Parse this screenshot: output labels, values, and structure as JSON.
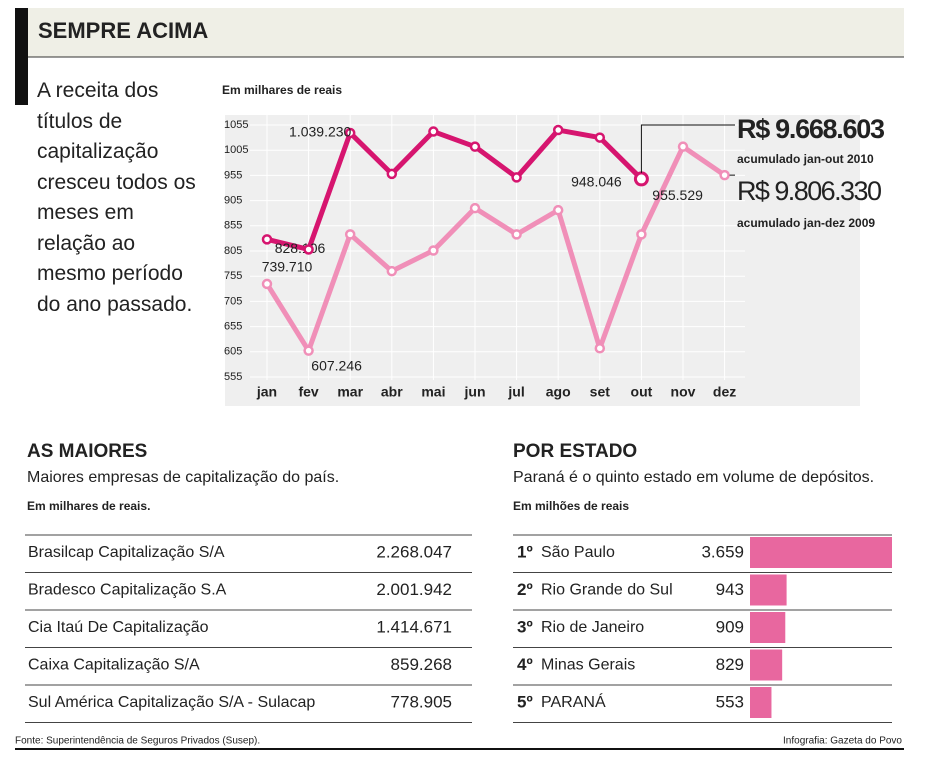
{
  "header": {
    "title": "SEMPRE ACIMA"
  },
  "intro": "A receita dos títulos de capitalização cresceu todos os meses em relação ao mesmo período do ano passado.",
  "chart_data": [
    {
      "type": "line",
      "y_label": "Em milhares de reais",
      "categories": [
        "jan",
        "fev",
        "mar",
        "abr",
        "mai",
        "jun",
        "jul",
        "ago",
        "set",
        "out",
        "nov",
        "dez"
      ],
      "ylim": [
        555,
        1055
      ],
      "yticks": [
        555,
        605,
        655,
        705,
        755,
        805,
        855,
        905,
        955,
        1005,
        1055
      ],
      "grid": true,
      "series": [
        {
          "color": "#d6156f",
          "values": [
            828.106,
            808,
            1039.23,
            958,
            1042,
            1012,
            951,
            1045,
            1030,
            948.046,
            null,
            null
          ],
          "value_labels": [
            "828.106",
            null,
            "1.039.230",
            null,
            null,
            null,
            null,
            null,
            null,
            "948.046",
            null,
            null
          ]
        },
        {
          "color": "#f08fb8",
          "values": [
            739.71,
            607.246,
            838,
            765,
            806,
            890,
            838,
            886,
            612,
            838,
            1012,
            955.529
          ],
          "value_labels": [
            "739.710",
            "607.246",
            null,
            null,
            null,
            null,
            null,
            null,
            null,
            null,
            null,
            "955.529"
          ]
        }
      ],
      "annotations": [
        {
          "text": "R$ 9.668.603",
          "note": "acumulado jan-out 2010"
        },
        {
          "text": "R$ 9.806.330",
          "note": "acumulado jan-dez 2009"
        }
      ]
    },
    {
      "type": "bar",
      "orientation": "horizontal",
      "title": "POR ESTADO",
      "subtitle": "Paraná é o quinto estado em volume de depósitos.",
      "unit_label": "Em milhões de reais",
      "ranks": [
        "1º",
        "2º",
        "3º",
        "4º",
        "5º"
      ],
      "categories": [
        "São Paulo",
        "Rio Grande do Sul",
        "Rio de Janeiro",
        "Minas Gerais",
        "PARANÁ"
      ],
      "values": [
        3659,
        943,
        909,
        829,
        553
      ],
      "value_labels": [
        "3.659",
        "943",
        "909",
        "829",
        "553"
      ],
      "color": "#e8679f"
    }
  ],
  "companies": {
    "title": "AS MAIORES",
    "subtitle": "Maiores empresas de capitalização do país.",
    "unit_label": "Em milhares de reais.",
    "rows": [
      [
        "Brasilcap Capitalização S/A",
        "2.268.047"
      ],
      [
        "Bradesco Capitalização S.A",
        "2.001.942"
      ],
      [
        "Cia Itaú De Capitalização",
        "1.414.671"
      ],
      [
        "Caixa Capitalização S/A",
        "859.268"
      ],
      [
        "Sul América Capitalização S/A - Sulacap",
        "778.905"
      ]
    ]
  },
  "footer": {
    "source": "Fonte: Superintendência de Seguros Privados (Susep).",
    "credit": "Infografia: Gazeta do Povo"
  }
}
